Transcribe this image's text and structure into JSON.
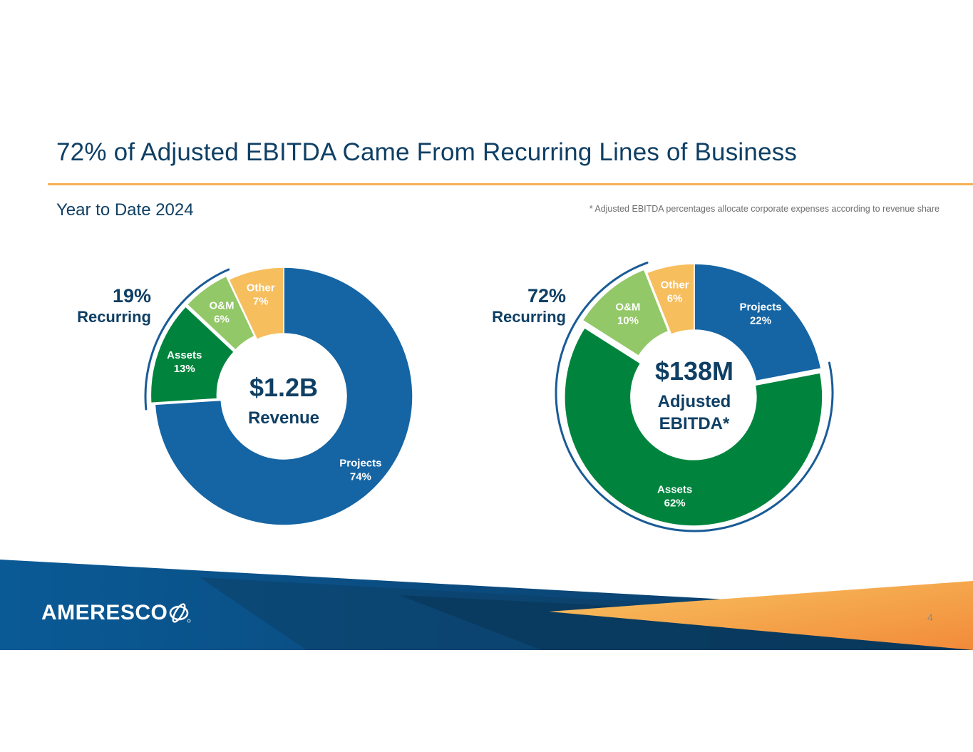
{
  "header": {
    "title": "72% of Adjusted EBITDA Came From Recurring Lines of Business",
    "subtitle": "Year to Date 2024",
    "footnote": "* Adjusted EBITDA percentages allocate corporate expenses according to revenue share"
  },
  "chart_data": [
    {
      "type": "pie",
      "style": "donut",
      "center_value": "$1.2B",
      "center_label": [
        "Revenue"
      ],
      "recurring": {
        "percent": "19%",
        "label": "Recurring"
      },
      "slices": [
        {
          "label": "Projects",
          "value": 74,
          "display": "74%",
          "color": "#1565a4",
          "recurring": false
        },
        {
          "label": "Assets",
          "value": 13,
          "display": "13%",
          "color": "#00843d",
          "recurring": true
        },
        {
          "label": "O&M",
          "value": 6,
          "display": "6%",
          "color": "#92c867",
          "recurring": true
        },
        {
          "label": "Other",
          "value": 7,
          "display": "7%",
          "color": "#f7be5e",
          "recurring": false
        }
      ]
    },
    {
      "type": "pie",
      "style": "donut",
      "center_value": "$138M",
      "center_label": [
        "Adjusted",
        "EBITDA*"
      ],
      "recurring": {
        "percent": "72%",
        "label": "Recurring"
      },
      "slices": [
        {
          "label": "Projects",
          "value": 22,
          "display": "22%",
          "color": "#1565a4",
          "recurring": false
        },
        {
          "label": "Assets",
          "value": 62,
          "display": "62%",
          "color": "#00843d",
          "recurring": true
        },
        {
          "label": "O&M",
          "value": 10,
          "display": "10%",
          "color": "#92c867",
          "recurring": true
        },
        {
          "label": "Other",
          "value": 6,
          "display": "6%",
          "color": "#f7be5e",
          "recurring": false
        }
      ]
    }
  ],
  "footer": {
    "logo_text": "AMERESCO",
    "page_number": "4"
  },
  "colors": {
    "title": "#0f3f64",
    "rule": "#f5b056",
    "recurring_arc": "#1a5b96"
  }
}
